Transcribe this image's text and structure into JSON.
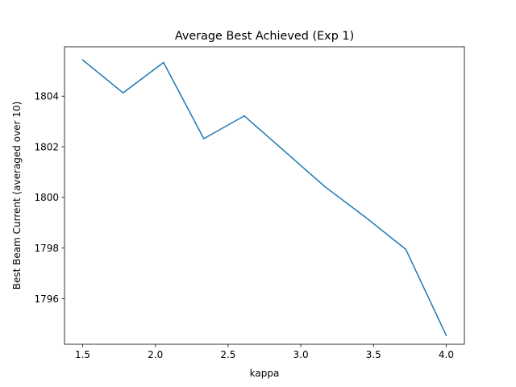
{
  "chart_data": {
    "type": "line",
    "title": "Average Best Achieved (Exp 1)",
    "xlabel": "kappa",
    "ylabel": "Best Beam Current (averaged over 10)",
    "xlim": [
      1.375,
      4.125
    ],
    "ylim": [
      1794.2,
      1805.95
    ],
    "xticks": [
      1.5,
      2.0,
      2.5,
      3.0,
      3.5,
      4.0
    ],
    "xtick_labels": [
      "1.5",
      "2.0",
      "2.5",
      "3.0",
      "3.5",
      "4.0"
    ],
    "yticks": [
      1796,
      1798,
      1800,
      1802,
      1804
    ],
    "ytick_labels": [
      "1796",
      "1798",
      "1800",
      "1802",
      "1804"
    ],
    "grid": false,
    "series": [
      {
        "color": "#1f77b4",
        "x": [
          1.5,
          1.778,
          2.056,
          2.333,
          2.611,
          2.889,
          3.167,
          3.444,
          3.722,
          4.0
        ],
        "y": [
          1805.43,
          1804.13,
          1805.33,
          1802.32,
          1803.22,
          1801.82,
          1800.42,
          1799.22,
          1797.95,
          1794.55
        ]
      }
    ]
  }
}
